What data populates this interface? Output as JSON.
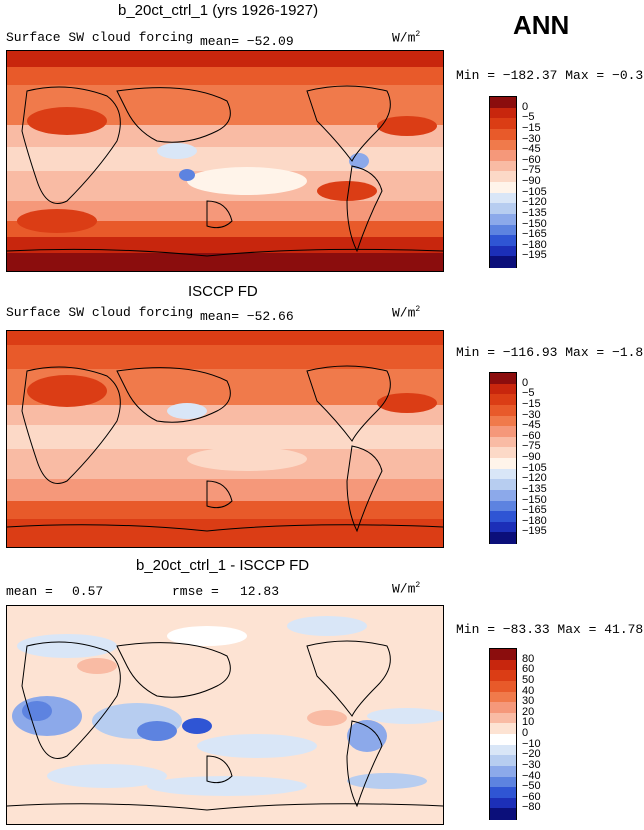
{
  "season": "ANN",
  "panels": [
    {
      "title": "b_20ct_ctrl_1 (yrs 1926-1927)",
      "left_text": "Surface SW cloud forcing",
      "mean_text": "mean= −52.09",
      "units": "W/m",
      "units_exp": "2",
      "minmax": "Min = −182.37 Max =  −0.39",
      "colorbar": {
        "labels": [
          "0",
          "−5",
          "−15",
          "−30",
          "−45",
          "−60",
          "−75",
          "−90",
          "−105",
          "−120",
          "−135",
          "−150",
          "−165",
          "−180",
          "−195"
        ],
        "colors": [
          "#8b0d0d",
          "#c8260d",
          "#db3d15",
          "#e85a2a",
          "#f07a4b",
          "#f5987a",
          "#f9bba4",
          "#fcd9c7",
          "#fff4ea",
          "#d9e6f7",
          "#b7cdf0",
          "#8ca9ea",
          "#5d83e0",
          "#2f55d4",
          "#1c2fb8",
          "#0b0f7a"
        ]
      }
    },
    {
      "title": "ISCCP FD",
      "left_text": "Surface SW cloud forcing",
      "mean_text": "mean= −52.66",
      "units": "W/m",
      "units_exp": "2",
      "minmax": "Min = −116.93 Max =  −1.81",
      "colorbar": {
        "labels": [
          "0",
          "−5",
          "−15",
          "−30",
          "−45",
          "−60",
          "−75",
          "−90",
          "−105",
          "−120",
          "−135",
          "−150",
          "−165",
          "−180",
          "−195"
        ],
        "colors": [
          "#8b0d0d",
          "#c8260d",
          "#db3d15",
          "#e85a2a",
          "#f07a4b",
          "#f5987a",
          "#f9bba4",
          "#fcd9c7",
          "#fff4ea",
          "#d9e6f7",
          "#b7cdf0",
          "#8ca9ea",
          "#5d83e0",
          "#2f55d4",
          "#1c2fb8",
          "#0b0f7a"
        ]
      }
    },
    {
      "title": "b_20ct_ctrl_1 - ISCCP FD",
      "mean_label": "mean =",
      "mean_value": "0.57",
      "rmse_label": "rmse =",
      "rmse_value": "12.83",
      "units": "W/m",
      "units_exp": "2",
      "minmax": "Min = −83.33 Max =  41.78",
      "colorbar": {
        "labels": [
          "80",
          "60",
          "50",
          "40",
          "30",
          "20",
          "10",
          "0",
          "−10",
          "−20",
          "−30",
          "−40",
          "−50",
          "−60",
          "−80"
        ],
        "colors": [
          "#8b0d0d",
          "#c8260d",
          "#db3d15",
          "#e85a2a",
          "#f07a4b",
          "#f5987a",
          "#f9bba4",
          "#fde3d3",
          "#ffffff",
          "#d9e6f7",
          "#b7cdf0",
          "#8ca9ea",
          "#5d83e0",
          "#2f55d4",
          "#1c2fb8",
          "#0b0f7a"
        ]
      }
    }
  ],
  "chart_data": [
    {
      "type": "heatmap",
      "title": "b_20ct_ctrl_1 (yrs 1926-1927)",
      "variable": "Surface SW cloud forcing",
      "units": "W/m2",
      "mean": -52.09,
      "min": -182.37,
      "max": -0.39,
      "levels": [
        0,
        -5,
        -15,
        -30,
        -45,
        -60,
        -75,
        -90,
        -105,
        -120,
        -135,
        -150,
        -165,
        -180,
        -195
      ]
    },
    {
      "type": "heatmap",
      "title": "ISCCP FD",
      "variable": "Surface SW cloud forcing",
      "units": "W/m2",
      "mean": -52.66,
      "min": -116.93,
      "max": -1.81,
      "levels": [
        0,
        -5,
        -15,
        -30,
        -45,
        -60,
        -75,
        -90,
        -105,
        -120,
        -135,
        -150,
        -165,
        -180,
        -195
      ]
    },
    {
      "type": "heatmap",
      "title": "b_20ct_ctrl_1 - ISCCP FD",
      "units": "W/m2",
      "mean": 0.57,
      "rmse": 12.83,
      "min": -83.33,
      "max": 41.78,
      "levels": [
        80,
        60,
        50,
        40,
        30,
        20,
        10,
        0,
        -10,
        -20,
        -30,
        -40,
        -50,
        -60,
        -80
      ]
    }
  ]
}
